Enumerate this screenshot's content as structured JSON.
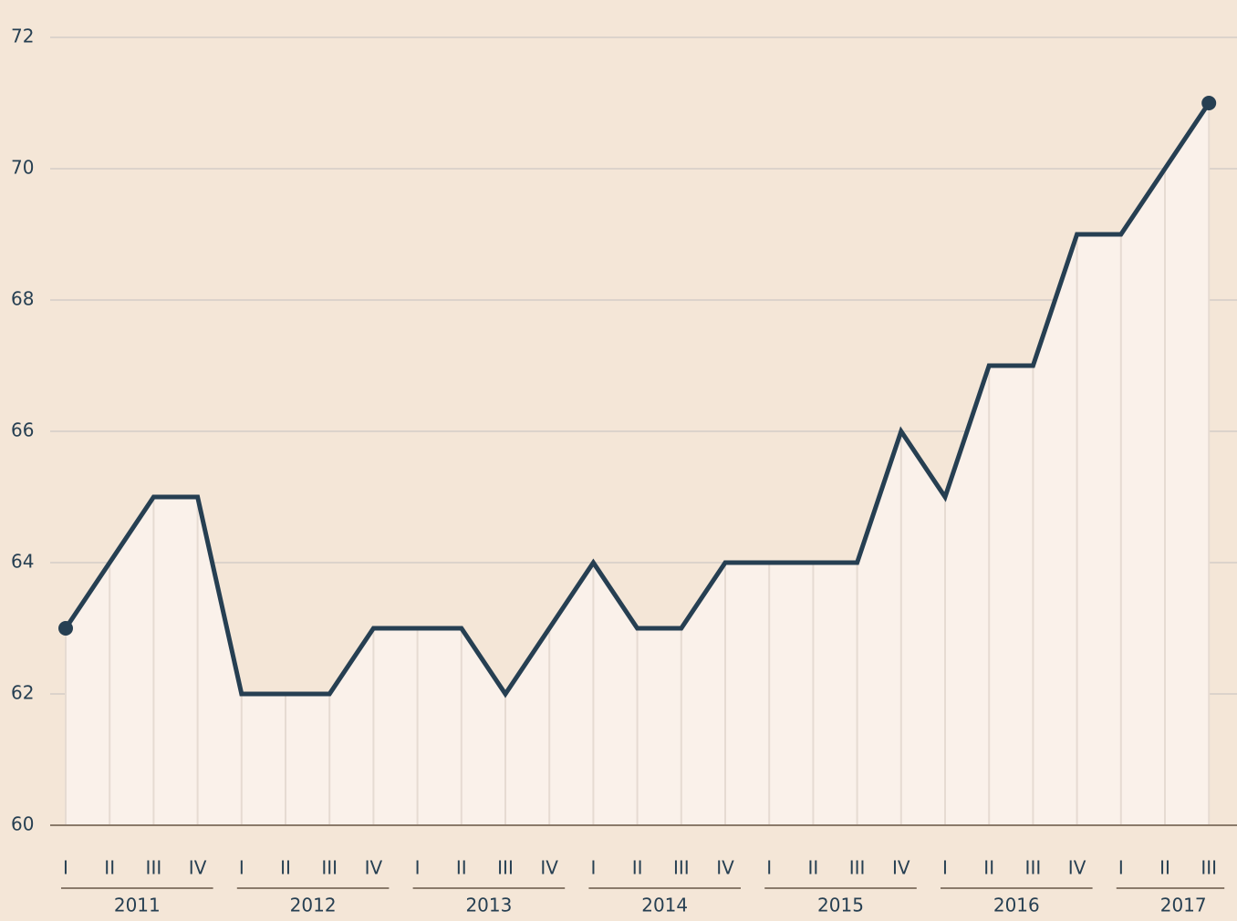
{
  "chart_data": {
    "type": "line",
    "categories": [
      "I",
      "II",
      "III",
      "IV",
      "I",
      "II",
      "III",
      "IV",
      "I",
      "II",
      "III",
      "IV",
      "I",
      "II",
      "III",
      "IV",
      "I",
      "II",
      "III",
      "IV",
      "I",
      "II",
      "III",
      "IV",
      "I",
      "II",
      "III"
    ],
    "years": [
      "2011",
      "2012",
      "2013",
      "2014",
      "2015",
      "2016",
      "2017"
    ],
    "series": [
      {
        "color": "#263f52",
        "values": [
          63,
          64,
          65,
          65,
          62,
          62,
          62,
          63,
          63,
          63,
          62,
          63,
          64,
          63,
          63,
          64,
          64,
          64,
          64,
          66,
          65,
          67,
          67,
          69,
          69,
          70,
          71
        ]
      }
    ],
    "ylim": [
      60,
      72
    ],
    "yticks": [
      60,
      62,
      64,
      66,
      68,
      70,
      72
    ],
    "grid": true
  }
}
